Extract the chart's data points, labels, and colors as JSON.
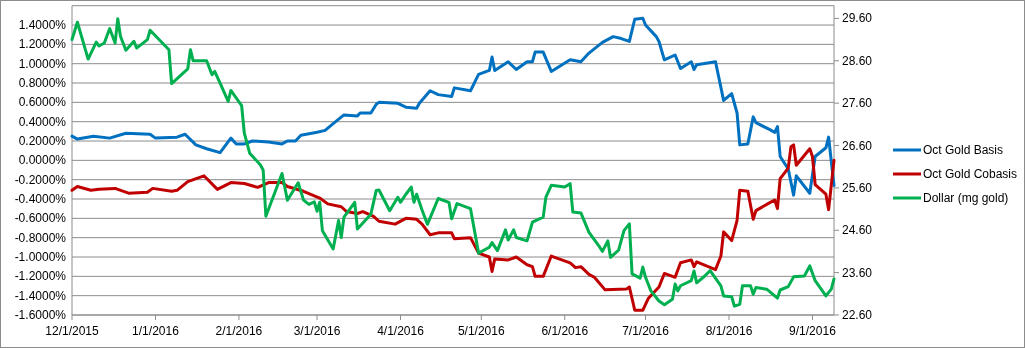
{
  "chart_data": {
    "type": "line",
    "legend": "right",
    "grid": "y",
    "marker": "none",
    "line_style": "solid",
    "xlim": [
      "2015-12-01",
      "2016-09-09"
    ],
    "xticks": [
      {
        "value": "2015-12-01",
        "label": "12/1/2015"
      },
      {
        "value": "2016-01-01",
        "label": "1/1/2016"
      },
      {
        "value": "2016-02-01",
        "label": "2/1/2016"
      },
      {
        "value": "2016-03-01",
        "label": "3/1/2016"
      },
      {
        "value": "2016-04-01",
        "label": "4/1/2016"
      },
      {
        "value": "2016-05-01",
        "label": "5/1/2016"
      },
      {
        "value": "2016-06-01",
        "label": "6/1/2016"
      },
      {
        "value": "2016-07-01",
        "label": "7/1/2016"
      },
      {
        "value": "2016-08-01",
        "label": "8/1/2016"
      },
      {
        "value": "2016-09-01",
        "label": "9/1/2016"
      }
    ],
    "ylim": [
      -1.6,
      1.6
    ],
    "yticks": [
      {
        "value": -1.6,
        "label": "-1.6000%"
      },
      {
        "value": -1.4,
        "label": "-1.4000%"
      },
      {
        "value": -1.2,
        "label": "-1.2000%"
      },
      {
        "value": -1.0,
        "label": "-1.0000%"
      },
      {
        "value": -0.8,
        "label": "-0.8000%"
      },
      {
        "value": -0.6,
        "label": "-0.6000%"
      },
      {
        "value": -0.4,
        "label": "-0.4000%"
      },
      {
        "value": -0.2,
        "label": "-0.2000%"
      },
      {
        "value": 0,
        "label": "0.0000%"
      },
      {
        "value": 0.2,
        "label": "0.2000%"
      },
      {
        "value": 0.4,
        "label": "0.4000%"
      },
      {
        "value": 0.6,
        "label": "0.6000%"
      },
      {
        "value": 0.8,
        "label": "0.8000%"
      },
      {
        "value": 1.0,
        "label": "1.0000%"
      },
      {
        "value": 1.2,
        "label": "1.2000%"
      },
      {
        "value": 1.4,
        "label": "1.4000%"
      },
      {
        "value": 1.6,
        "label": null
      }
    ],
    "y2lim": [
      22.6,
      29.9
    ],
    "y2ticks": [
      {
        "value": 22.6,
        "label": "22.60"
      },
      {
        "value": 23.6,
        "label": "23.60"
      },
      {
        "value": 24.6,
        "label": "24.60"
      },
      {
        "value": 25.6,
        "label": "25.60"
      },
      {
        "value": 26.6,
        "label": "26.60"
      },
      {
        "value": 27.6,
        "label": "27.60"
      },
      {
        "value": 28.6,
        "label": "28.60"
      },
      {
        "value": 29.6,
        "label": "29.60"
      }
    ],
    "series": [
      {
        "name": "Oct Gold Basis",
        "color": "#0070c0",
        "x": [
          "2015-12-01",
          "2015-12-03",
          "2015-12-09",
          "2015-12-15",
          "2015-12-21",
          "2015-12-30",
          "2016-01-01",
          "2016-01-09",
          "2016-01-12",
          "2016-01-16",
          "2016-01-20",
          "2016-01-25",
          "2016-01-29",
          "2016-01-31",
          "2016-02-03",
          "2016-02-06",
          "2016-02-12",
          "2016-02-17",
          "2016-02-19",
          "2016-02-22",
          "2016-02-24",
          "2016-03-01",
          "2016-03-04",
          "2016-03-07",
          "2016-03-11",
          "2016-03-16",
          "2016-03-17",
          "2016-03-21",
          "2016-03-23",
          "2016-03-24",
          "2016-03-31",
          "2016-04-03",
          "2016-04-07",
          "2016-04-08",
          "2016-04-12",
          "2016-04-15",
          "2016-04-20",
          "2016-04-21",
          "2016-04-27",
          "2016-04-30",
          "2016-05-04",
          "2016-05-05",
          "2016-05-06",
          "2016-05-11",
          "2016-05-14",
          "2016-05-18",
          "2016-05-20",
          "2016-05-21",
          "2016-05-24",
          "2016-05-27",
          "2016-06-03",
          "2016-06-07",
          "2016-06-10",
          "2016-06-15",
          "2016-06-19",
          "2016-06-22",
          "2016-06-25",
          "2016-06-27",
          "2016-06-30",
          "2016-07-01",
          "2016-07-05",
          "2016-07-06",
          "2016-07-08",
          "2016-07-12",
          "2016-07-14",
          "2016-07-18",
          "2016-07-19",
          "2016-07-20",
          "2016-07-27",
          "2016-07-30",
          "2016-08-02",
          "2016-08-04",
          "2016-08-05",
          "2016-08-08",
          "2016-08-10",
          "2016-08-11",
          "2016-08-16",
          "2016-08-18",
          "2016-08-19",
          "2016-08-20",
          "2016-08-23",
          "2016-08-25",
          "2016-08-26",
          "2016-08-31",
          "2016-09-02",
          "2016-09-06",
          "2016-09-07",
          "2016-09-09"
        ],
        "values": [
          0.25,
          0.22,
          0.25,
          0.23,
          0.28,
          0.27,
          0.23,
          0.24,
          0.27,
          0.16,
          0.12,
          0.08,
          0.23,
          0.17,
          0.17,
          0.2,
          0.19,
          0.17,
          0.2,
          0.2,
          0.26,
          0.29,
          0.31,
          0.38,
          0.47,
          0.46,
          0.49,
          0.49,
          0.58,
          0.6,
          0.59,
          0.55,
          0.54,
          0.59,
          0.72,
          0.68,
          0.66,
          0.75,
          0.72,
          0.89,
          0.93,
          1.07,
          0.93,
          1.02,
          0.94,
          1.02,
          1.02,
          1.12,
          1.12,
          0.92,
          1.04,
          1.02,
          1.11,
          1.22,
          1.28,
          1.26,
          1.23,
          1.46,
          1.47,
          1.4,
          1.28,
          1.23,
          1.04,
          1.09,
          0.95,
          1.02,
          0.94,
          0.99,
          1.02,
          0.62,
          0.69,
          0.49,
          0.16,
          0.17,
          0.45,
          0.39,
          0.32,
          0.29,
          0.35,
          0.04,
          -0.09,
          -0.36,
          -0.16,
          -0.34,
          0.04,
          0.13,
          0.24,
          -0.26
        ]
      },
      {
        "name": "Oct Gold Cobasis",
        "color": "#c00000",
        "x": [
          "2015-12-01",
          "2015-12-03",
          "2015-12-08",
          "2015-12-11",
          "2015-12-17",
          "2015-12-22",
          "2015-12-29",
          "2015-12-31",
          "2016-01-07",
          "2016-01-09",
          "2016-01-13",
          "2016-01-19",
          "2016-01-24",
          "2016-01-29",
          "2016-02-03",
          "2016-02-08",
          "2016-02-12",
          "2016-02-17",
          "2016-02-19",
          "2016-02-25",
          "2016-03-02",
          "2016-03-05",
          "2016-03-10",
          "2016-03-12",
          "2016-03-16",
          "2016-03-18",
          "2016-03-22",
          "2016-03-24",
          "2016-03-30",
          "2016-04-03",
          "2016-04-07",
          "2016-04-09",
          "2016-04-12",
          "2016-04-15",
          "2016-04-20",
          "2016-04-21",
          "2016-04-27",
          "2016-04-30",
          "2016-05-04",
          "2016-05-05",
          "2016-05-06",
          "2016-05-11",
          "2016-05-14",
          "2016-05-18",
          "2016-05-20",
          "2016-05-21",
          "2016-05-24",
          "2016-05-27",
          "2016-06-03",
          "2016-06-05",
          "2016-06-07",
          "2016-06-10",
          "2016-06-12",
          "2016-06-16",
          "2016-06-24",
          "2016-06-25",
          "2016-06-27",
          "2016-06-30",
          "2016-07-02",
          "2016-07-06",
          "2016-07-08",
          "2016-07-12",
          "2016-07-14",
          "2016-07-18",
          "2016-07-19",
          "2016-07-20",
          "2016-07-27",
          "2016-07-29",
          "2016-07-30",
          "2016-08-02",
          "2016-08-04",
          "2016-08-05",
          "2016-08-08",
          "2016-08-10",
          "2016-08-11",
          "2016-08-16",
          "2016-08-18",
          "2016-08-19",
          "2016-08-20",
          "2016-08-23",
          "2016-08-24",
          "2016-08-25",
          "2016-08-26",
          "2016-08-31",
          "2016-09-01",
          "2016-09-02",
          "2016-09-06",
          "2016-09-07",
          "2016-09-09"
        ],
        "values": [
          -0.31,
          -0.27,
          -0.31,
          -0.3,
          -0.29,
          -0.34,
          -0.33,
          -0.29,
          -0.32,
          -0.31,
          -0.22,
          -0.16,
          -0.3,
          -0.23,
          -0.24,
          -0.28,
          -0.23,
          -0.23,
          -0.27,
          -0.32,
          -0.39,
          -0.45,
          -0.48,
          -0.53,
          -0.55,
          -0.53,
          -0.58,
          -0.63,
          -0.66,
          -0.6,
          -0.61,
          -0.66,
          -0.77,
          -0.75,
          -0.75,
          -0.81,
          -0.8,
          -0.96,
          -1.0,
          -1.15,
          -1.02,
          -1.03,
          -1.0,
          -1.08,
          -1.1,
          -1.2,
          -1.2,
          -0.99,
          -1.06,
          -1.11,
          -1.1,
          -1.18,
          -1.21,
          -1.34,
          -1.33,
          -1.31,
          -1.55,
          -1.55,
          -1.43,
          -1.31,
          -1.17,
          -1.21,
          -1.06,
          -1.03,
          -1.1,
          -1.05,
          -1.13,
          -0.99,
          -0.74,
          -0.83,
          -0.62,
          -0.31,
          -0.32,
          -0.61,
          -0.52,
          -0.44,
          -0.41,
          -0.5,
          -0.19,
          -0.08,
          0.14,
          0.16,
          -0.05,
          0.12,
          0.04,
          -0.25,
          -0.35,
          -0.51,
          0.0
        ]
      },
      {
        "name": "Dollar (mg gold)",
        "color": "#00b050",
        "axis": "y2",
        "x": [
          "2015-12-01",
          "2015-12-03",
          "2015-12-07",
          "2015-12-10",
          "2015-12-11",
          "2015-12-13",
          "2015-12-15",
          "2015-12-17",
          "2015-12-18",
          "2015-12-19",
          "2015-12-21",
          "2015-12-24",
          "2015-12-25",
          "2015-12-29",
          "2015-12-30",
          "2016-01-06",
          "2016-01-07",
          "2016-01-13",
          "2016-01-14",
          "2016-01-15",
          "2016-01-20",
          "2016-01-22",
          "2016-01-23",
          "2016-01-25",
          "2016-01-28",
          "2016-01-29",
          "2016-02-02",
          "2016-02-03",
          "2016-02-05",
          "2016-02-09",
          "2016-02-10",
          "2016-02-11",
          "2016-02-17",
          "2016-02-19",
          "2016-02-23",
          "2016-02-25",
          "2016-02-27",
          "2016-02-29",
          "2016-03-01",
          "2016-03-02",
          "2016-03-03",
          "2016-03-07",
          "2016-03-09",
          "2016-03-10",
          "2016-03-11",
          "2016-03-15",
          "2016-03-16",
          "2016-03-21",
          "2016-03-23",
          "2016-03-24",
          "2016-03-28",
          "2016-03-31",
          "2016-04-01",
          "2016-04-03",
          "2016-04-05",
          "2016-04-06",
          "2016-04-07",
          "2016-04-09",
          "2016-04-11",
          "2016-04-15",
          "2016-04-19",
          "2016-04-20",
          "2016-04-22",
          "2016-04-27",
          "2016-04-30",
          "2016-05-04",
          "2016-05-05",
          "2016-05-07",
          "2016-05-10",
          "2016-05-11",
          "2016-05-13",
          "2016-05-14",
          "2016-05-18",
          "2016-05-20",
          "2016-05-24",
          "2016-05-25",
          "2016-05-27",
          "2016-06-01",
          "2016-06-03",
          "2016-06-04",
          "2016-06-07",
          "2016-06-10",
          "2016-06-14",
          "2016-06-15",
          "2016-06-17",
          "2016-06-18",
          "2016-06-21",
          "2016-06-23",
          "2016-06-25",
          "2016-06-26",
          "2016-06-29",
          "2016-06-30",
          "2016-07-01",
          "2016-07-03",
          "2016-07-06",
          "2016-07-08",
          "2016-07-11",
          "2016-07-12",
          "2016-07-13",
          "2016-07-14",
          "2016-07-18",
          "2016-07-19",
          "2016-07-20",
          "2016-07-23",
          "2016-07-25",
          "2016-07-29",
          "2016-07-30",
          "2016-08-02",
          "2016-08-03",
          "2016-08-05",
          "2016-08-06",
          "2016-08-09",
          "2016-08-10",
          "2016-08-11",
          "2016-08-15",
          "2016-08-19",
          "2016-08-20",
          "2016-08-23",
          "2016-08-25",
          "2016-08-29",
          "2016-08-31",
          "2016-09-02",
          "2016-09-06",
          "2016-09-08",
          "2016-09-09"
        ],
        "values": [
          29.1,
          29.51,
          28.64,
          29.04,
          28.95,
          29.02,
          29.36,
          29.02,
          29.59,
          29.18,
          28.85,
          29.06,
          28.9,
          29.1,
          29.32,
          28.86,
          28.06,
          28.41,
          28.86,
          28.6,
          28.6,
          28.27,
          28.35,
          28.07,
          27.64,
          27.9,
          27.54,
          26.89,
          26.42,
          26.14,
          26.02,
          24.93,
          25.94,
          25.31,
          25.72,
          25.31,
          25.21,
          25.27,
          25.05,
          25.26,
          24.59,
          24.16,
          24.83,
          24.43,
          24.91,
          25.26,
          24.63,
          24.98,
          25.54,
          25.55,
          25.06,
          25.38,
          25.26,
          25.45,
          25.62,
          25.26,
          25.45,
          25.08,
          24.74,
          25.35,
          25.26,
          24.87,
          25.23,
          25.11,
          24.06,
          24.2,
          24.31,
          24.12,
          24.61,
          24.37,
          24.61,
          24.43,
          24.35,
          24.79,
          24.91,
          25.38,
          25.66,
          25.62,
          25.7,
          25.03,
          25.01,
          24.55,
          24.2,
          24.1,
          24.35,
          23.96,
          24.13,
          24.59,
          24.75,
          23.57,
          23.47,
          23.73,
          23.49,
          23.17,
          22.93,
          22.84,
          22.97,
          23.33,
          23.17,
          23.29,
          23.41,
          23.64,
          23.36,
          23.52,
          23.65,
          23.29,
          23.05,
          23.03,
          22.81,
          22.85,
          23.29,
          23.29,
          23.09,
          23.25,
          23.21,
          23.0,
          23.19,
          23.27,
          23.5,
          23.52,
          23.76,
          23.41,
          23.05,
          23.21,
          23.45
        ]
      }
    ]
  }
}
